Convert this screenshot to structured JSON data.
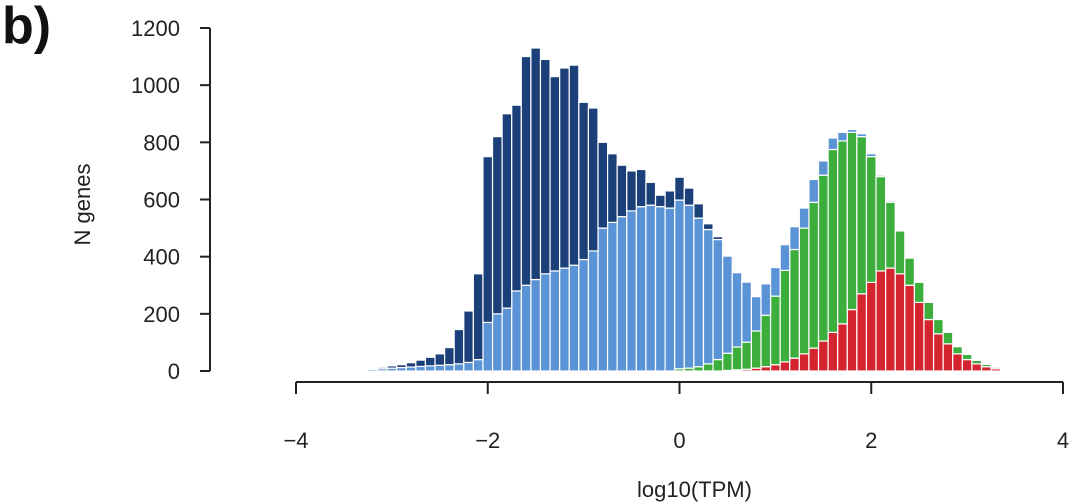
{
  "panel_label": "b)",
  "chart_data": {
    "type": "bar",
    "stacked": true,
    "xlabel": "log10(TPM)",
    "ylabel": "N genes",
    "xlim": [
      -4,
      4
    ],
    "ylim": [
      0,
      1200
    ],
    "x_ticks": [
      -4,
      -2,
      0,
      2,
      4
    ],
    "x_tick_labels": [
      "−4",
      "−2",
      "0",
      "2",
      "4"
    ],
    "y_ticks": [
      0,
      200,
      400,
      600,
      800,
      1000,
      1200
    ],
    "y_tick_labels": [
      "0",
      "200",
      "400",
      "600",
      "800",
      "1000",
      "1200"
    ],
    "bin_width": 0.1,
    "x": [
      -3.2,
      -3.1,
      -3.0,
      -2.9,
      -2.8,
      -2.7,
      -2.6,
      -2.5,
      -2.4,
      -2.3,
      -2.2,
      -2.1,
      -2.0,
      -1.9,
      -1.8,
      -1.7,
      -1.6,
      -1.5,
      -1.4,
      -1.3,
      -1.2,
      -1.1,
      -1.0,
      -0.9,
      -0.8,
      -0.7,
      -0.6,
      -0.5,
      -0.4,
      -0.3,
      -0.2,
      -0.1,
      0.0,
      0.1,
      0.2,
      0.3,
      0.4,
      0.5,
      0.6,
      0.7,
      0.8,
      0.9,
      1.0,
      1.1,
      1.2,
      1.3,
      1.4,
      1.5,
      1.6,
      1.7,
      1.8,
      1.9,
      2.0,
      2.1,
      2.2,
      2.3,
      2.4,
      2.5,
      2.6,
      2.7,
      2.8,
      2.9,
      3.0,
      3.1,
      3.2,
      3.3,
      3.4
    ],
    "series": [
      {
        "color": "#d42430",
        "values": [
          0,
          0,
          0,
          0,
          0,
          0,
          0,
          0,
          0,
          0,
          0,
          0,
          0,
          0,
          0,
          0,
          0,
          0,
          0,
          0,
          0,
          0,
          0,
          0,
          0,
          0,
          0,
          0,
          0,
          0,
          0,
          0,
          0,
          0,
          0,
          0,
          0,
          2,
          4,
          6,
          10,
          15,
          22,
          32,
          45,
          60,
          80,
          105,
          135,
          165,
          215,
          270,
          310,
          350,
          360,
          340,
          300,
          240,
          180,
          130,
          95,
          60,
          40,
          25,
          15,
          8,
          4
        ]
      },
      {
        "color": "#3bae3c",
        "values": [
          0,
          0,
          0,
          0,
          0,
          0,
          0,
          0,
          0,
          0,
          0,
          0,
          0,
          0,
          0,
          0,
          0,
          0,
          0,
          0,
          0,
          0,
          0,
          0,
          0,
          0,
          0,
          0,
          0,
          0,
          0,
          0,
          8,
          10,
          15,
          25,
          40,
          60,
          80,
          95,
          130,
          180,
          240,
          320,
          380,
          440,
          510,
          580,
          640,
          640,
          620,
          550,
          440,
          330,
          230,
          150,
          95,
          70,
          60,
          50,
          40,
          25,
          18,
          12,
          8,
          5,
          3
        ]
      },
      {
        "color": "#5b94d6",
        "values": [
          6,
          8,
          10,
          12,
          14,
          16,
          18,
          20,
          22,
          25,
          30,
          40,
          170,
          200,
          220,
          280,
          300,
          320,
          340,
          350,
          360,
          370,
          390,
          420,
          500,
          520,
          540,
          560,
          575,
          580,
          575,
          570,
          590,
          570,
          520,
          470,
          420,
          340,
          260,
          210,
          120,
          110,
          100,
          90,
          80,
          70,
          80,
          50,
          40,
          30,
          10,
          10,
          10,
          5,
          5,
          3,
          0,
          0,
          0,
          0,
          0,
          0,
          0,
          0,
          0,
          0,
          0
        ]
      },
      {
        "color": "#1b3f78",
        "values": [
          3,
          5,
          8,
          10,
          15,
          22,
          30,
          40,
          60,
          120,
          180,
          300,
          580,
          620,
          680,
          650,
          800,
          810,
          750,
          680,
          700,
          700,
          550,
          500,
          300,
          240,
          180,
          140,
          130,
          80,
          40,
          60,
          80,
          60,
          50,
          20,
          10,
          0,
          0,
          0,
          0,
          0,
          0,
          0,
          0,
          0,
          0,
          0,
          0,
          0,
          0,
          0,
          0,
          0,
          0,
          0,
          0,
          0,
          0,
          0,
          0,
          0,
          0,
          0,
          0,
          0,
          0
        ]
      }
    ]
  }
}
